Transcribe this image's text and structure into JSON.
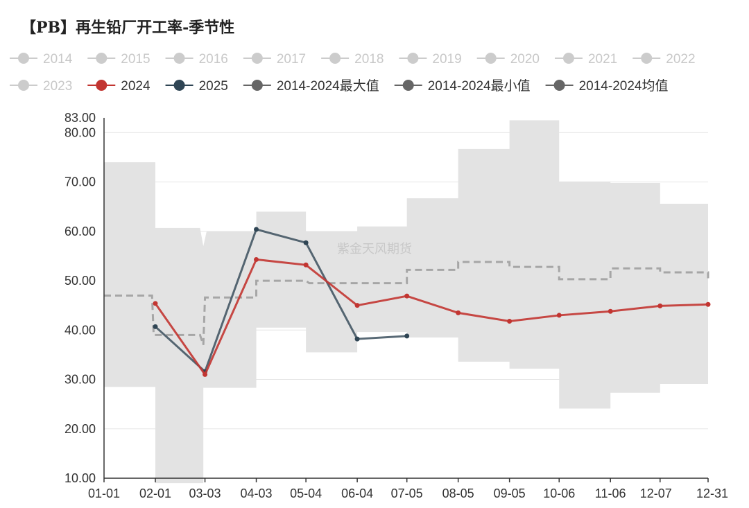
{
  "title": "【PB】再生铅厂开工率-季节性",
  "watermark": "紫金天风期货",
  "colors": {
    "inactive": "#cccccc",
    "s2024": "#c23531",
    "s2025": "#2f4554",
    "stat": "#666666",
    "band": "#e3e3e3",
    "avg": "#a6a6a6"
  },
  "legend": [
    {
      "name": "2014",
      "active": false
    },
    {
      "name": "2015",
      "active": false
    },
    {
      "name": "2016",
      "active": false
    },
    {
      "name": "2017",
      "active": false
    },
    {
      "name": "2018",
      "active": false
    },
    {
      "name": "2019",
      "active": false
    },
    {
      "name": "2020",
      "active": false
    },
    {
      "name": "2021",
      "active": false
    },
    {
      "name": "2022",
      "active": false
    },
    {
      "name": "2023",
      "active": false
    },
    {
      "name": "2024",
      "active": true,
      "color": "#c23531"
    },
    {
      "name": "2025",
      "active": true,
      "color": "#2f4554"
    },
    {
      "name": "2014-2024最大值",
      "active": true,
      "color": "#666666"
    },
    {
      "name": "2014-2024最小值",
      "active": true,
      "color": "#666666"
    },
    {
      "name": "2014-2024均值",
      "active": true,
      "color": "#666666"
    }
  ],
  "chart_data": {
    "type": "line",
    "title": "【PB】再生铅厂开工率-季节性",
    "x_ticks": [
      "01-01",
      "02-01",
      "03-03",
      "04-03",
      "05-04",
      "06-04",
      "07-05",
      "08-05",
      "09-05",
      "10-06",
      "11-06",
      "12-07",
      "12-31"
    ],
    "y_ticks": [
      "10.00",
      "20.00",
      "30.00",
      "40.00",
      "50.00",
      "60.00",
      "70.00",
      "80.00",
      "83.00"
    ],
    "ylim": [
      10,
      83
    ],
    "xlim": [
      0,
      365
    ],
    "grid": true,
    "legend_position": "top",
    "series": [
      {
        "name": "2024",
        "x": [
          31,
          61,
          92,
          122,
          153,
          183,
          214,
          245,
          275,
          306,
          336,
          365
        ],
        "values": [
          45.4,
          31.0,
          54.3,
          53.2,
          45.0,
          46.9,
          43.5,
          41.8,
          43.0,
          43.8,
          44.9,
          45.2
        ]
      },
      {
        "name": "2025",
        "x": [
          31,
          61,
          92,
          122,
          153,
          183
        ],
        "values": [
          40.7,
          31.6,
          60.4,
          57.7,
          38.2,
          38.8
        ]
      }
    ],
    "band": {
      "max": [
        [
          0,
          74
        ],
        [
          31,
          74
        ],
        [
          31,
          60.7
        ],
        [
          58,
          60.7
        ],
        [
          60,
          57
        ],
        [
          62,
          60
        ],
        [
          92,
          60
        ],
        [
          92,
          64
        ],
        [
          122,
          64
        ],
        [
          122,
          60
        ],
        [
          153,
          60
        ],
        [
          153,
          61
        ],
        [
          183,
          61
        ],
        [
          183,
          66.7
        ],
        [
          214,
          66.7
        ],
        [
          214,
          76.7
        ],
        [
          245,
          76.7
        ],
        [
          245,
          82.5
        ],
        [
          275,
          82.5
        ],
        [
          275,
          70.1
        ],
        [
          306,
          70.1
        ],
        [
          306,
          69.8
        ],
        [
          336,
          69.8
        ],
        [
          336,
          65.6
        ],
        [
          365,
          65.6
        ]
      ],
      "min": [
        [
          0,
          28.5
        ],
        [
          31,
          28.5
        ],
        [
          31,
          9
        ],
        [
          60,
          9
        ],
        [
          60,
          28.3
        ],
        [
          92,
          28.3
        ],
        [
          92,
          40.5
        ],
        [
          122,
          40.5
        ],
        [
          122,
          35.5
        ],
        [
          153,
          35.5
        ],
        [
          153,
          39.6
        ],
        [
          183,
          39.6
        ],
        [
          183,
          38.5
        ],
        [
          214,
          38.5
        ],
        [
          214,
          33.6
        ],
        [
          245,
          33.6
        ],
        [
          245,
          32.2
        ],
        [
          275,
          32.2
        ],
        [
          275,
          24.1
        ],
        [
          306,
          24.1
        ],
        [
          306,
          27.3
        ],
        [
          336,
          27.3
        ],
        [
          336,
          29.1
        ],
        [
          365,
          29.1
        ]
      ]
    },
    "average": [
      [
        0,
        47
      ],
      [
        29,
        47
      ],
      [
        30,
        39
      ],
      [
        58,
        39
      ],
      [
        60,
        37
      ],
      [
        61,
        46.6
      ],
      [
        92,
        46.6
      ],
      [
        92,
        50
      ],
      [
        122,
        50
      ],
      [
        124,
        49.5
      ],
      [
        153,
        49.5
      ],
      [
        183,
        49.5
      ],
      [
        183,
        52.2
      ],
      [
        214,
        52.2
      ],
      [
        214,
        53.8
      ],
      [
        245,
        53.8
      ],
      [
        245,
        52.8
      ],
      [
        275,
        52.8
      ],
      [
        275,
        50.3
      ],
      [
        306,
        50.3
      ],
      [
        306,
        52.5
      ],
      [
        336,
        52.5
      ],
      [
        336,
        51.7
      ],
      [
        365,
        51.7
      ],
      [
        365,
        50.5
      ]
    ]
  }
}
